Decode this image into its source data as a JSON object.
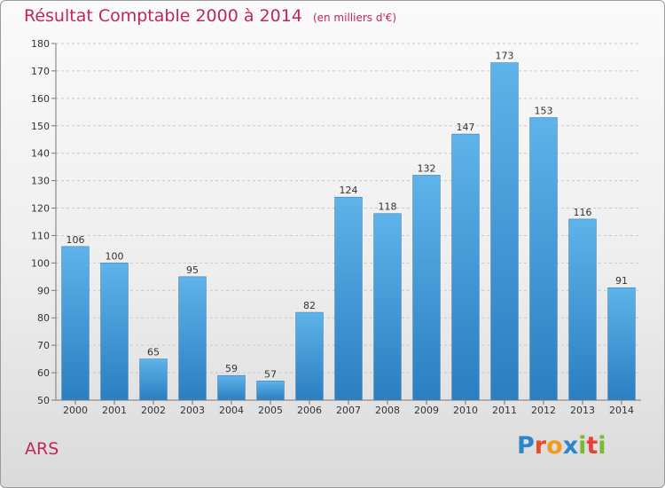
{
  "chart_data": {
    "type": "bar",
    "title": "Résultat Comptable 2000 à 2014",
    "subtitle": "(en milliers d'€)",
    "categories": [
      "2000",
      "2001",
      "2002",
      "2003",
      "2004",
      "2005",
      "2006",
      "2007",
      "2008",
      "2009",
      "2010",
      "2011",
      "2012",
      "2013",
      "2014"
    ],
    "values": [
      106,
      100,
      65,
      95,
      59,
      57,
      82,
      124,
      118,
      132,
      147,
      173,
      153,
      116,
      91
    ],
    "ylim": [
      50,
      180
    ],
    "yticks": [
      50,
      60,
      70,
      80,
      90,
      100,
      110,
      120,
      130,
      140,
      150,
      160,
      170,
      180
    ],
    "grid": true,
    "xlabel": "",
    "ylabel": ""
  },
  "place_label": "ARS",
  "logo_letters": [
    "P",
    "r",
    "o",
    "x",
    "i",
    "t",
    "i"
  ],
  "colors": {
    "title": "#c0265c",
    "bar_top": "#5eb3ea",
    "bar_bottom": "#2b7ec0",
    "logo": [
      "#2a86c8",
      "#e84b2b",
      "#f29a1c",
      "#2a86c8",
      "#7bb833",
      "#e8403a",
      "#7bb833"
    ]
  }
}
